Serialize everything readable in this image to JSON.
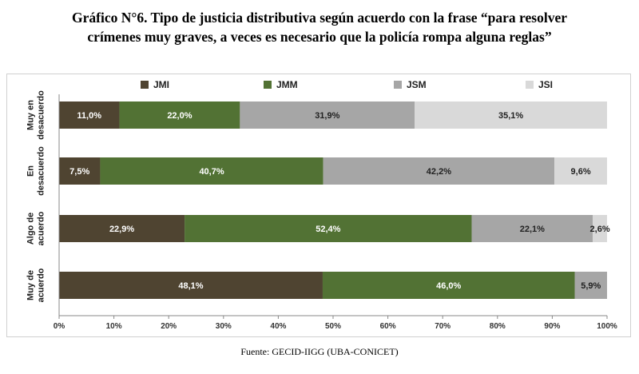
{
  "title": {
    "line1": "Gráfico N°6. Tipo de justicia distributiva según acuerdo con la frase “para resolver",
    "line2": "crímenes muy graves, a veces es necesario que la policía rompa alguna reglas”"
  },
  "source": "Fuente: GECID-IIGG (UBA-CONICET)",
  "chart_data": {
    "type": "bar",
    "orientation": "horizontal",
    "stacked": true,
    "title": "Gráfico N°6. Tipo de justicia distributiva según acuerdo con la frase “para resolver crímenes muy graves, a veces es necesario que la policía rompa alguna reglas”",
    "categories": [
      [
        "Muy en",
        "desacuerdo"
      ],
      [
        "En",
        "desacuerdo"
      ],
      [
        "Algo de",
        "acuerdo"
      ],
      [
        "Muy de",
        "acuerdo"
      ]
    ],
    "series": [
      {
        "name": "JMI",
        "color": "#4f4431",
        "values": [
          11.0,
          7.5,
          22.9,
          48.1
        ],
        "labels": [
          "11,0%",
          "7,5%",
          "22,9%",
          "48,1%"
        ],
        "label_color": "#ffffff"
      },
      {
        "name": "JMM",
        "color": "#527234",
        "values": [
          22.0,
          40.7,
          52.4,
          46.0
        ],
        "labels": [
          "22,0%",
          "40,7%",
          "52,4%",
          "46,0%"
        ],
        "label_color": "#ffffff"
      },
      {
        "name": "JSM",
        "color": "#a6a6a6",
        "values": [
          31.9,
          42.2,
          22.1,
          5.9
        ],
        "labels": [
          "31,9%",
          "42,2%",
          "22,1%",
          "5,9%"
        ],
        "label_color": "#222222"
      },
      {
        "name": "JSI",
        "color": "#d9d9d9",
        "values": [
          35.1,
          9.6,
          2.6,
          0.0
        ],
        "labels": [
          "35,1%",
          "9,6%",
          "2,6%",
          ""
        ],
        "label_color": "#222222"
      }
    ],
    "xlim": [
      0,
      100
    ],
    "xticks": [
      0,
      10,
      20,
      30,
      40,
      50,
      60,
      70,
      80,
      90,
      100
    ],
    "xtick_labels": [
      "0%",
      "10%",
      "20%",
      "30%",
      "40%",
      "50%",
      "60%",
      "70%",
      "80%",
      "90%",
      "100%"
    ],
    "grid": false,
    "legend": "top"
  }
}
